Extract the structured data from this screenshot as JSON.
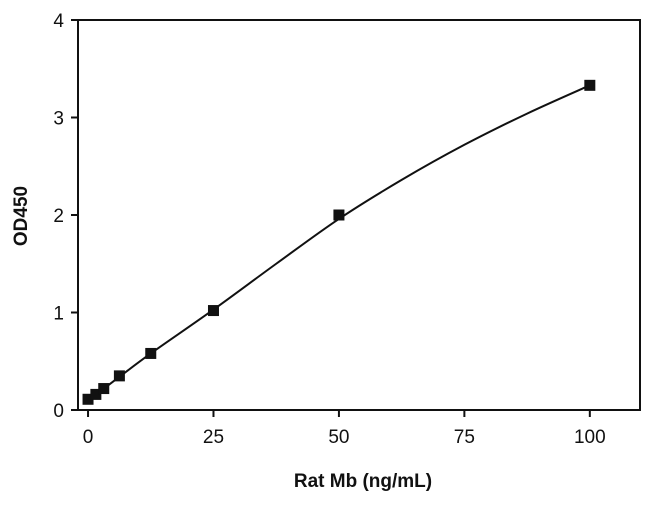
{
  "chart_data": {
    "type": "scatter",
    "xlabel": "Rat Mb (ng/mL)",
    "ylabel": "OD450",
    "xlim": [
      -2,
      110
    ],
    "ylim": [
      0,
      4
    ],
    "x_ticks": [
      0,
      25,
      50,
      75,
      100
    ],
    "y_ticks": [
      0,
      1,
      2,
      3,
      4
    ],
    "grid": false,
    "legend": "none",
    "series": [
      {
        "marker": "square",
        "color": "#111111",
        "points": [
          {
            "x": 0,
            "y": 0.11
          },
          {
            "x": 1.56,
            "y": 0.16
          },
          {
            "x": 3.13,
            "y": 0.22
          },
          {
            "x": 6.25,
            "y": 0.35
          },
          {
            "x": 12.5,
            "y": 0.58
          },
          {
            "x": 25,
            "y": 1.02
          },
          {
            "x": 50,
            "y": 2.0
          },
          {
            "x": 100,
            "y": 3.33
          }
        ]
      }
    ],
    "fit_curve": {
      "style": "smooth line",
      "color": "#111111",
      "points": [
        {
          "x": 0,
          "y": 0.11
        },
        {
          "x": 3.13,
          "y": 0.22
        },
        {
          "x": 6.25,
          "y": 0.34
        },
        {
          "x": 12.5,
          "y": 0.58
        },
        {
          "x": 25,
          "y": 1.03
        },
        {
          "x": 37.5,
          "y": 1.5
        },
        {
          "x": 50,
          "y": 1.96
        },
        {
          "x": 62.5,
          "y": 2.36
        },
        {
          "x": 75,
          "y": 2.72
        },
        {
          "x": 87.5,
          "y": 3.04
        },
        {
          "x": 100,
          "y": 3.33
        }
      ]
    }
  }
}
